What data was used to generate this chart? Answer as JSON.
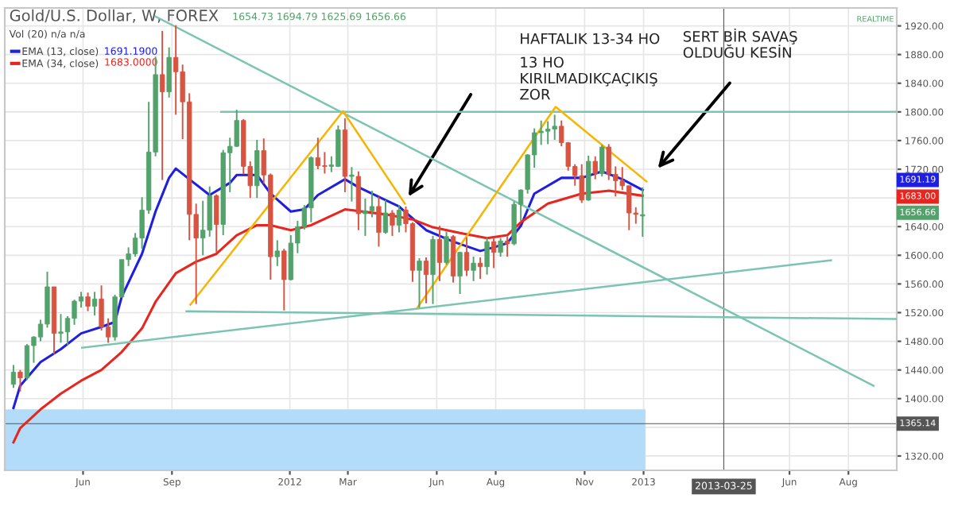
{
  "chart_data": {
    "type": "candlestick",
    "title": "Gold/U.S. Dollar, W, FOREX",
    "xlim": [
      "2011-03-12",
      "2013-09-20"
    ],
    "ylim": [
      1300,
      1945
    ],
    "xticks": [
      {
        "value": "2011-06-01",
        "label": "Jun"
      },
      {
        "value": "2011-09-01",
        "label": "Sep"
      },
      {
        "value": "2012-01-01",
        "label": "2012"
      },
      {
        "value": "2012-03-01",
        "label": "Mar"
      },
      {
        "value": "2012-06-01",
        "label": "Jun"
      },
      {
        "value": "2012-08-01",
        "label": "Aug"
      },
      {
        "value": "2012-11-01",
        "label": "Nov"
      },
      {
        "value": "2013-01-01",
        "label": "2013"
      },
      {
        "value": "2013-06-01",
        "label": "Jun"
      },
      {
        "value": "2013-08-01",
        "label": "Aug"
      }
    ],
    "yticks": [
      {
        "value": 1320,
        "label": "1320.00"
      },
      {
        "value": 1360,
        "label": null
      },
      {
        "value": 1400,
        "label": "1400.00"
      },
      {
        "value": 1440,
        "label": "1440.00"
      },
      {
        "value": 1480,
        "label": "1480.00"
      },
      {
        "value": 1520,
        "label": "1520.00"
      },
      {
        "value": 1560,
        "label": "1560.00"
      },
      {
        "value": 1600,
        "label": "1600.00"
      },
      {
        "value": 1640,
        "label": "1640.00"
      },
      {
        "value": 1680,
        "label": null
      },
      {
        "value": 1720,
        "label": "1720.00"
      },
      {
        "value": 1760,
        "label": "1760.00"
      },
      {
        "value": 1800,
        "label": "1800.00"
      },
      {
        "value": 1840,
        "label": "1840.00"
      },
      {
        "value": 1880,
        "label": "1880.00"
      },
      {
        "value": 1920,
        "label": "1920.00"
      }
    ],
    "grid": true,
    "legend": "top left",
    "series": [
      {
        "x": [
          "2011-03-21",
          "2011-03-28",
          "2011-04-04",
          "2011-04-11",
          "2011-04-18",
          "2011-04-25",
          "2011-05-02",
          "2011-05-09",
          "2011-05-16",
          "2011-05-23",
          "2011-05-30",
          "2011-06-06",
          "2011-06-13",
          "2011-06-20",
          "2011-06-27",
          "2011-07-04",
          "2011-07-11",
          "2011-07-18",
          "2011-07-25",
          "2011-08-01",
          "2011-08-08",
          "2011-08-15",
          "2011-08-22",
          "2011-08-29",
          "2011-09-05",
          "2011-09-12",
          "2011-09-19",
          "2011-09-26",
          "2011-10-03",
          "2011-10-10",
          "2011-10-17",
          "2011-10-24",
          "2011-10-31",
          "2011-11-07",
          "2011-11-14",
          "2011-11-21",
          "2011-11-28",
          "2011-12-05",
          "2011-12-12",
          "2011-12-19",
          "2011-12-26",
          "2012-01-02",
          "2012-01-09",
          "2012-01-16",
          "2012-01-23",
          "2012-01-30",
          "2012-02-06",
          "2012-02-13",
          "2012-02-20",
          "2012-02-27",
          "2012-03-05",
          "2012-03-12",
          "2012-03-19",
          "2012-03-26",
          "2012-04-02",
          "2012-04-09",
          "2012-04-16",
          "2012-04-23",
          "2012-04-30",
          "2012-05-07",
          "2012-05-14",
          "2012-05-21",
          "2012-05-28",
          "2012-06-04",
          "2012-06-11",
          "2012-06-18",
          "2012-06-25",
          "2012-07-02",
          "2012-07-09",
          "2012-07-16",
          "2012-07-23",
          "2012-07-30",
          "2012-08-06",
          "2012-08-13",
          "2012-08-20",
          "2012-08-27",
          "2012-09-03",
          "2012-09-10",
          "2012-09-17",
          "2012-09-24",
          "2012-10-01",
          "2012-10-08",
          "2012-10-15",
          "2012-10-22",
          "2012-10-29",
          "2012-11-05",
          "2012-11-12",
          "2012-11-19",
          "2012-11-26",
          "2012-12-03",
          "2012-12-10",
          "2012-12-17",
          "2012-12-24",
          "2012-12-31"
        ],
        "ohlc": [
          [
            1420,
            1447,
            1415,
            1437
          ],
          [
            1437,
            1440,
            1410,
            1429
          ],
          [
            1429,
            1476,
            1426,
            1474
          ],
          [
            1474,
            1487,
            1450,
            1486
          ],
          [
            1486,
            1510,
            1480,
            1504
          ],
          [
            1504,
            1577,
            1499,
            1556
          ],
          [
            1556,
            1556,
            1462,
            1491
          ],
          [
            1491,
            1518,
            1478,
            1493
          ],
          [
            1493,
            1515,
            1475,
            1512
          ],
          [
            1512,
            1538,
            1503,
            1536
          ],
          [
            1536,
            1549,
            1527,
            1542
          ],
          [
            1542,
            1548,
            1522,
            1529
          ],
          [
            1529,
            1549,
            1516,
            1539
          ],
          [
            1539,
            1558,
            1495,
            1500
          ],
          [
            1500,
            1512,
            1478,
            1486
          ],
          [
            1486,
            1545,
            1481,
            1542
          ],
          [
            1542,
            1594,
            1541,
            1594
          ],
          [
            1594,
            1611,
            1585,
            1602
          ],
          [
            1602,
            1631,
            1598,
            1624
          ],
          [
            1624,
            1681,
            1609,
            1663
          ],
          [
            1663,
            1814,
            1658,
            1744
          ],
          [
            1744,
            1877,
            1738,
            1852
          ],
          [
            1852,
            1913,
            1705,
            1828
          ],
          [
            1828,
            1890,
            1820,
            1876
          ],
          [
            1876,
            1921,
            1796,
            1856
          ],
          [
            1856,
            1866,
            1762,
            1814
          ],
          [
            1814,
            1826,
            1621,
            1657
          ],
          [
            1657,
            1672,
            1532,
            1624
          ],
          [
            1624,
            1676,
            1600,
            1635
          ],
          [
            1635,
            1696,
            1626,
            1683
          ],
          [
            1683,
            1685,
            1604,
            1643
          ],
          [
            1643,
            1747,
            1628,
            1743
          ],
          [
            1743,
            1764,
            1688,
            1752
          ],
          [
            1752,
            1803,
            1751,
            1788
          ],
          [
            1788,
            1790,
            1713,
            1724
          ],
          [
            1724,
            1731,
            1680,
            1697
          ],
          [
            1697,
            1761,
            1680,
            1746
          ],
          [
            1746,
            1763,
            1700,
            1712
          ],
          [
            1712,
            1714,
            1566,
            1598
          ],
          [
            1598,
            1621,
            1585,
            1606
          ],
          [
            1606,
            1609,
            1523,
            1566
          ],
          [
            1566,
            1628,
            1565,
            1617
          ],
          [
            1617,
            1648,
            1603,
            1640
          ],
          [
            1640,
            1670,
            1636,
            1666
          ],
          [
            1666,
            1738,
            1646,
            1736
          ],
          [
            1736,
            1764,
            1720,
            1725
          ],
          [
            1725,
            1744,
            1714,
            1724
          ],
          [
            1724,
            1738,
            1716,
            1726
          ],
          [
            1724,
            1781,
            1723,
            1775
          ],
          [
            1775,
            1791,
            1688,
            1710
          ],
          [
            1710,
            1723,
            1675,
            1712
          ],
          [
            1710,
            1717,
            1635,
            1658
          ],
          [
            1658,
            1679,
            1627,
            1662
          ],
          [
            1662,
            1690,
            1653,
            1668
          ],
          [
            1668,
            1682,
            1612,
            1632
          ],
          [
            1632,
            1677,
            1630,
            1659
          ],
          [
            1659,
            1663,
            1627,
            1642
          ],
          [
            1642,
            1670,
            1632,
            1663
          ],
          [
            1663,
            1668,
            1632,
            1644
          ],
          [
            1644,
            1646,
            1563,
            1579
          ],
          [
            1579,
            1596,
            1527,
            1592
          ],
          [
            1592,
            1597,
            1533,
            1573
          ],
          [
            1573,
            1627,
            1532,
            1622
          ],
          [
            1622,
            1641,
            1564,
            1590
          ],
          [
            1590,
            1633,
            1587,
            1626
          ],
          [
            1626,
            1628,
            1562,
            1571
          ],
          [
            1571,
            1605,
            1546,
            1604
          ],
          [
            1604,
            1625,
            1571,
            1579
          ],
          [
            1579,
            1598,
            1564,
            1589
          ],
          [
            1589,
            1597,
            1567,
            1584
          ],
          [
            1584,
            1625,
            1573,
            1619
          ],
          [
            1619,
            1625,
            1582,
            1604
          ],
          [
            1604,
            1624,
            1598,
            1620
          ],
          [
            1620,
            1626,
            1598,
            1616
          ],
          [
            1616,
            1675,
            1614,
            1671
          ],
          [
            1671,
            1692,
            1648,
            1691
          ],
          [
            1692,
            1741,
            1686,
            1740
          ],
          [
            1740,
            1777,
            1722,
            1771
          ],
          [
            1771,
            1788,
            1754,
            1773
          ],
          [
            1773,
            1787,
            1755,
            1776
          ],
          [
            1776,
            1796,
            1761,
            1780
          ],
          [
            1780,
            1788,
            1752,
            1757
          ],
          [
            1757,
            1758,
            1718,
            1724
          ],
          [
            1724,
            1727,
            1697,
            1711
          ],
          [
            1711,
            1727,
            1673,
            1677
          ],
          [
            1677,
            1739,
            1676,
            1731
          ],
          [
            1731,
            1738,
            1706,
            1714
          ],
          [
            1714,
            1754,
            1710,
            1751
          ],
          [
            1751,
            1755,
            1705,
            1713
          ],
          [
            1713,
            1724,
            1682,
            1704
          ],
          [
            1704,
            1723,
            1691,
            1697
          ],
          [
            1697,
            1697,
            1635,
            1659
          ],
          [
            1659,
            1667,
            1644,
            1657
          ],
          [
            1654.73,
            1694.79,
            1625.69,
            1656.66
          ]
        ],
        "colors": [
          "#53a26b",
          "#d75442",
          "#53a26b",
          "#53a26b",
          "#53a26b",
          "#53a26b",
          "#d75442",
          "#53a26b",
          "#53a26b",
          "#53a26b",
          "#53a26b",
          "#d75442",
          "#53a26b",
          "#d75442",
          "#d75442",
          "#53a26b",
          "#53a26b",
          "#53a26b",
          "#53a26b",
          "#53a26b",
          "#53a26b",
          "#53a26b",
          "#d75442",
          "#53a26b",
          "#d75442",
          "#d75442",
          "#d75442",
          "#d75442",
          "#53a26b",
          "#53a26b",
          "#d75442",
          "#53a26b",
          "#53a26b",
          "#53a26b",
          "#d75442",
          "#d75442",
          "#53a26b",
          "#d75442",
          "#d75442",
          "#53a26b",
          "#d75442",
          "#53a26b",
          "#53a26b",
          "#53a26b",
          "#53a26b",
          "#d75442",
          "#d75442",
          "#53a26b",
          "#53a26b",
          "#d75442",
          "#53a26b",
          "#d75442",
          "#53a26b",
          "#53a26b",
          "#d75442",
          "#53a26b",
          "#d75442",
          "#53a26b",
          "#d75442",
          "#d75442",
          "#53a26b",
          "#d75442",
          "#53a26b",
          "#d75442",
          "#53a26b",
          "#d75442",
          "#53a26b",
          "#d75442",
          "#53a26b",
          "#d75442",
          "#53a26b",
          "#d75442",
          "#53a26b",
          "#d75442",
          "#53a26b",
          "#53a26b",
          "#53a26b",
          "#53a26b",
          "#53a26b",
          "#53a26b",
          "#53a26b",
          "#d75442",
          "#d75442",
          "#d75442",
          "#d75442",
          "#53a26b",
          "#d75442",
          "#53a26b",
          "#d75442",
          "#d75442",
          "#d75442",
          "#d75442",
          "#d75442",
          "#53a26b"
        ]
      },
      {
        "type": "line",
        "name": "EMA (13, close)",
        "color": "#1f1fe0",
        "x": [
          "2011-03-21",
          "2011-03-28",
          "2011-04-18",
          "2011-05-09",
          "2011-05-30",
          "2011-06-20",
          "2011-07-04",
          "2011-07-11",
          "2011-08-01",
          "2011-08-15",
          "2011-08-29",
          "2011-09-05",
          "2011-09-19",
          "2011-10-10",
          "2011-10-31",
          "2011-11-07",
          "2011-11-28",
          "2011-12-12",
          "2012-01-02",
          "2012-01-16",
          "2012-01-30",
          "2012-02-27",
          "2012-03-12",
          "2012-04-23",
          "2012-05-21",
          "2012-06-18",
          "2012-07-16",
          "2012-07-30",
          "2012-08-13",
          "2012-08-27",
          "2012-09-10",
          "2012-10-08",
          "2012-10-29",
          "2012-11-19",
          "2012-12-10",
          "2012-12-31"
        ],
        "values": [
          1387,
          1418,
          1451,
          1469,
          1491,
          1500,
          1507,
          1542,
          1602,
          1661,
          1708,
          1721,
          1706,
          1684,
          1701,
          1712,
          1712,
          1686,
          1661,
          1664,
          1684,
          1706,
          1695,
          1668,
          1635,
          1619,
          1606,
          1611,
          1617,
          1641,
          1686,
          1708,
          1708,
          1717,
          1706,
          1691
        ]
      },
      {
        "type": "line",
        "name": "EMA (34, close)",
        "color": "#e8251f",
        "x": [
          "2011-03-21",
          "2011-03-28",
          "2011-04-18",
          "2011-05-09",
          "2011-05-30",
          "2011-06-20",
          "2011-07-11",
          "2011-08-01",
          "2011-08-15",
          "2011-09-05",
          "2011-09-26",
          "2011-10-17",
          "2011-11-07",
          "2011-11-28",
          "2011-12-12",
          "2012-01-02",
          "2012-01-23",
          "2012-02-27",
          "2012-04-09",
          "2012-05-07",
          "2012-05-28",
          "2012-06-25",
          "2012-07-23",
          "2012-08-13",
          "2012-08-27",
          "2012-09-24",
          "2012-10-29",
          "2012-11-26",
          "2012-12-31"
        ],
        "values": [
          1339,
          1359,
          1385,
          1407,
          1425,
          1440,
          1465,
          1498,
          1535,
          1575,
          1591,
          1602,
          1628,
          1642,
          1642,
          1635,
          1642,
          1664,
          1657,
          1650,
          1639,
          1631,
          1624,
          1628,
          1646,
          1672,
          1686,
          1690,
          1683
        ]
      },
      {
        "type": "line",
        "color": "#7cc4b2",
        "x": [
          "2011-08-15",
          "2013-08-27"
        ],
        "values": [
          1933,
          1418
        ]
      },
      {
        "type": "line",
        "color": "#7cc4b2",
        "x": [
          "2011-10-22",
          "2013-09-20"
        ],
        "values": [
          1800,
          1800
        ]
      },
      {
        "type": "line",
        "color": "#7cc4b2",
        "x": [
          "2011-09-16",
          "2013-09-20"
        ],
        "values": [
          1522,
          1511
        ]
      },
      {
        "type": "line",
        "color": "#7cc4b2",
        "x": [
          "2011-05-31",
          "2013-07-14"
        ],
        "values": [
          1471,
          1593
        ]
      },
      {
        "type": "line",
        "color": "#f7b500",
        "x": [
          "2011-09-20",
          "2012-02-25",
          "2012-04-29"
        ],
        "values": [
          1531,
          1801,
          1672
        ]
      },
      {
        "type": "line",
        "color": "#f7b500",
        "x": [
          "2012-05-12",
          "2012-10-02",
          "2013-01-04"
        ],
        "values": [
          1527,
          1807,
          1703
        ]
      }
    ],
    "bands": [
      {
        "axis": "y",
        "from": 1300,
        "to": 1385,
        "color": "#b3dcfa"
      }
    ],
    "ref_lines": [
      {
        "axis": "y",
        "value": 1365.14,
        "label": "1365.14",
        "color": "#555555"
      },
      {
        "axis": "x",
        "value": "2013-03-25",
        "label": "2013-03-25",
        "color": "#555555"
      }
    ],
    "annotations": [
      "1654.73 1694.79 1625.69 1656.66",
      "Vol (20) n/a n/a",
      "1691.1900",
      "1683.0000",
      "HAFTALIK 13-34 HO",
      "13 HO\nKIRILMADIKÇAÇIKIŞ\nZOR",
      "SERT BİR SAVAŞ\nOLDUĞU KESİN",
      "REALTIME",
      "1691.19",
      "1683.00",
      "1656.66"
    ]
  }
}
